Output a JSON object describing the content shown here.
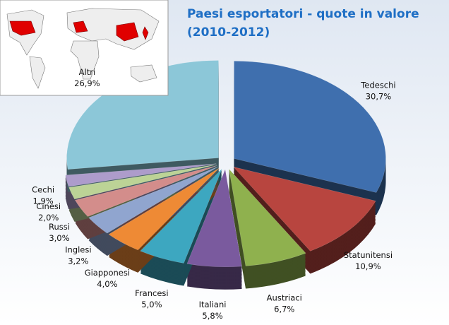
{
  "chart_data": {
    "type": "pie3d",
    "title": "Paesi esportatori - quote in valore",
    "subtitle": "(2010-2012)",
    "categories": [
      "Tedeschi",
      "Statunitensi",
      "Austriaci",
      "Italiani",
      "Francesi",
      "Giapponesi",
      "Inglesi",
      "Russi",
      "Cinesi",
      "Cechi",
      "Altri"
    ],
    "values": [
      30.7,
      10.9,
      6.7,
      5.8,
      5.0,
      4.0,
      3.2,
      3.0,
      2.0,
      1.9,
      26.9
    ],
    "value_labels": [
      "30,7%",
      "10,9%",
      "6,7%",
      "5,8%",
      "5,0%",
      "4,0%",
      "3,2%",
      "3,0%",
      "2,0%",
      "1,9%",
      "26,9%"
    ],
    "colors": [
      "#3f6fae",
      "#b8453f",
      "#8fb14e",
      "#7a5a9e",
      "#3da7c0",
      "#ee8a35",
      "#90a5cf",
      "#d38d8b",
      "#bcd396",
      "#ad9ccb",
      "#8cc7d8"
    ]
  }
}
